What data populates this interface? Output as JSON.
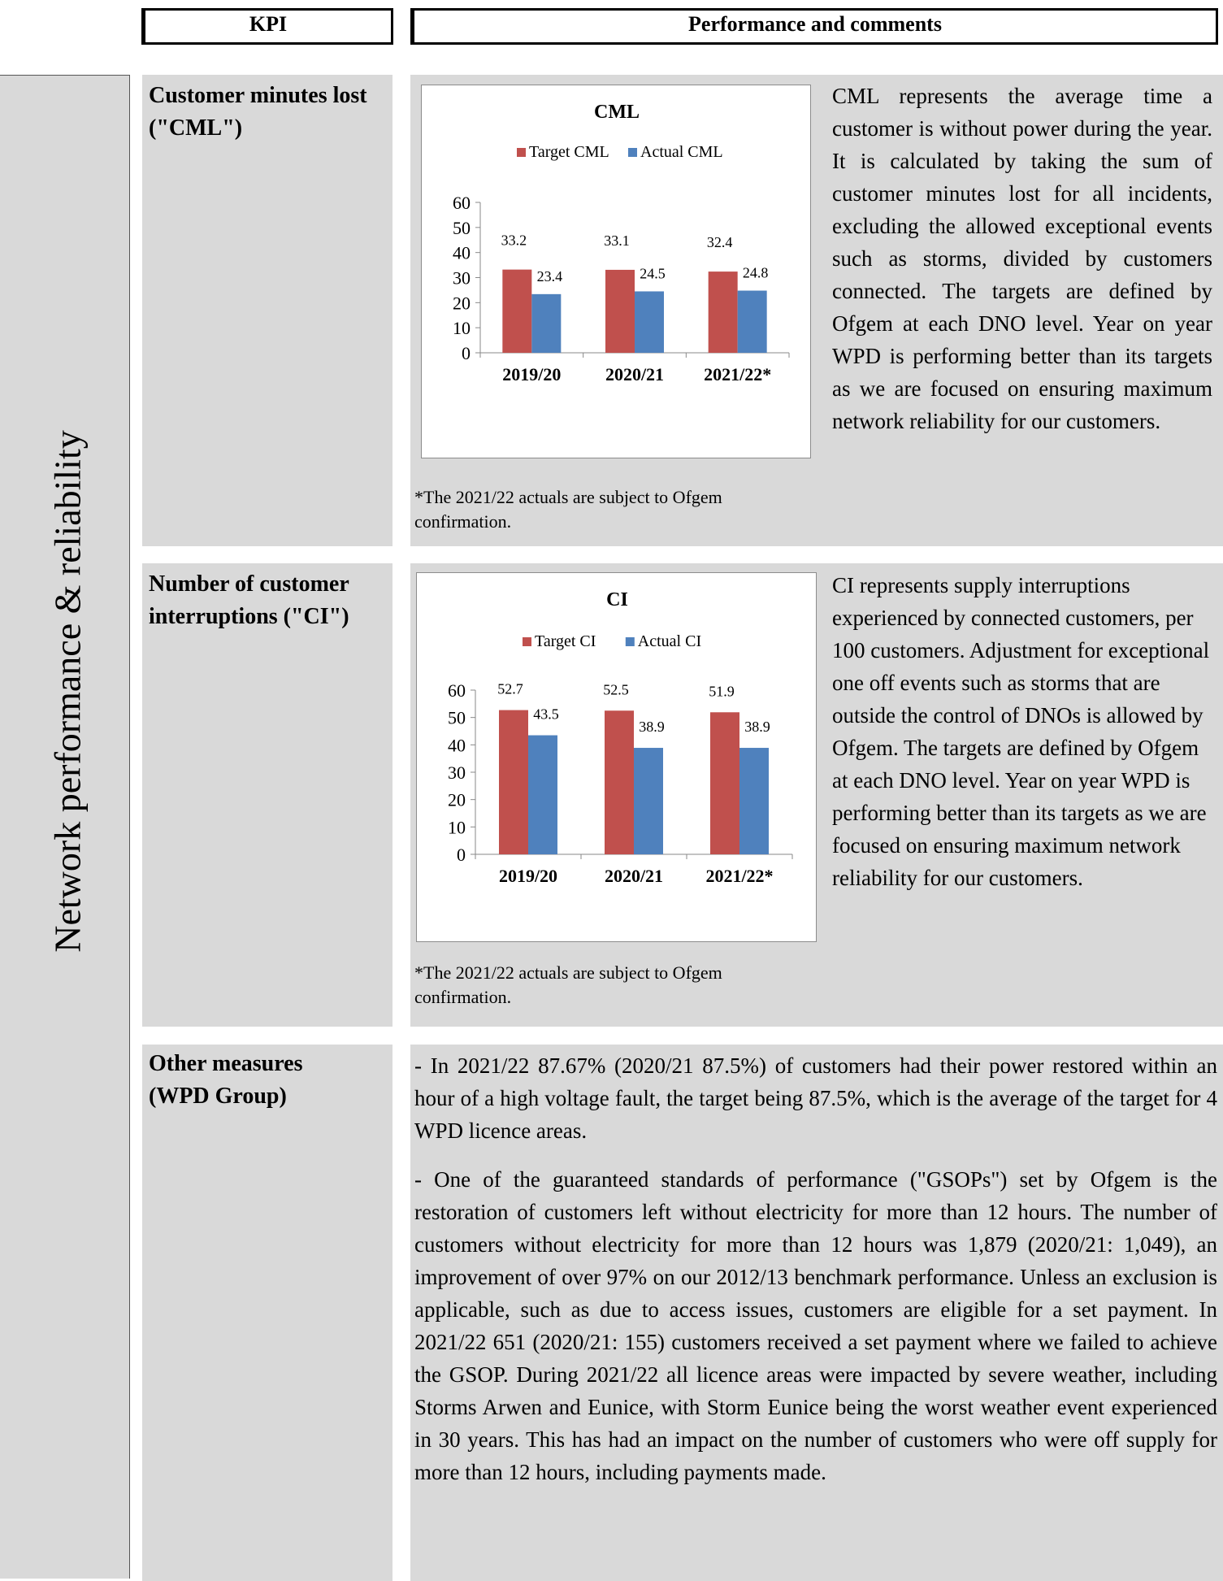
{
  "header": {
    "kpi": "KPI",
    "performance": "Performance and comments"
  },
  "side_title": "Network performance & reliability",
  "sections": {
    "cml": {
      "label": "Customer minutes lost (\"CML\")",
      "text": "CML represents the average time a customer is without power during the year. It is calculated by taking the sum of customer minutes lost for all incidents, excluding the allowed exceptional events such as storms, divided by customers connected. The targets are defined by Ofgem at each DNO level. Year on year WPD is performing better than its targets as we are focused on ensuring maximum network reliability for our customers.",
      "note": "*The 2021/22 actuals are subject to Ofgem confirmation."
    },
    "ci": {
      "label": "Number of customer interruptions (\"CI\")",
      "text": "CI represents supply interruptions experienced by connected customers, per 100 customers. Adjustment for exceptional one off events such as storms that are outside the control of DNOs is allowed by Ofgem. The targets are defined by Ofgem at each DNO level. Year on year WPD is performing better than its targets as we are focused on ensuring maximum network reliability for our customers.",
      "note": "*The 2021/22 actuals are subject to Ofgem confirmation."
    },
    "other": {
      "label": "Other measures (WPD Group)",
      "para1": "- In 2021/22 87.67% (2020/21 87.5%) of customers had their power restored within an hour of a high voltage fault, the target being 87.5%, which is the average of the target for 4 WPD licence areas.",
      "para2": "- One of the guaranteed standards of performance (\"GSOPs\") set by Ofgem is the restoration of customers left without electricity for more than 12 hours. The number of customers without electricity for more than 12 hours was 1,879 (2020/21: 1,049), an improvement of over 97% on our 2012/13 benchmark performance. Unless an exclusion is applicable, such as due to access issues, customers are eligible for a set payment. In 2021/22 651 (2020/21: 155) customers received a set payment where we failed to achieve the GSOP. During 2021/22 all licence areas were impacted by severe weather, including Storms Arwen and Eunice, with Storm Eunice being the worst weather event experienced in 30 years. This has had an impact on the number of customers who were off supply for more than 12 hours, including payments made."
    }
  },
  "colors": {
    "target": "#c0504d",
    "actual": "#4f81bd",
    "panel": "#d9d9d9"
  },
  "chart_data": [
    {
      "type": "bar",
      "title": "CML",
      "categories": [
        "2019/20",
        "2020/21",
        "2021/22*"
      ],
      "series": [
        {
          "name": "Target CML",
          "values": [
            33.2,
            33.1,
            32.4
          ]
        },
        {
          "name": "Actual CML",
          "values": [
            23.4,
            24.5,
            24.8
          ]
        }
      ],
      "ylim": [
        0,
        60
      ],
      "yticks": [
        0,
        10,
        20,
        30,
        40,
        50,
        60
      ],
      "legend": "top"
    },
    {
      "type": "bar",
      "title": "CI",
      "categories": [
        "2019/20",
        "2020/21",
        "2021/22*"
      ],
      "series": [
        {
          "name": "Target CI",
          "values": [
            52.7,
            52.5,
            51.9
          ]
        },
        {
          "name": "Actual CI",
          "values": [
            43.5,
            38.9,
            38.9
          ]
        }
      ],
      "ylim": [
        0,
        60
      ],
      "yticks": [
        0,
        10,
        20,
        30,
        40,
        50,
        60
      ],
      "legend": "top"
    }
  ]
}
